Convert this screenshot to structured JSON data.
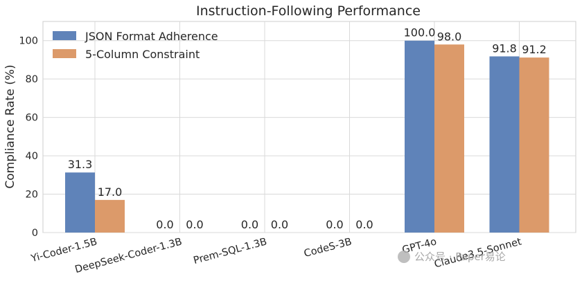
{
  "chart_data": {
    "type": "bar",
    "title": "Instruction-Following Performance",
    "xlabel": "",
    "ylabel": "Compliance Rate (%)",
    "ylim": [
      0,
      110
    ],
    "yticks": [
      0,
      20,
      40,
      60,
      80,
      100
    ],
    "categories": [
      "Yi-Coder-1.5B",
      "DeepSeek-Coder-1.3B",
      "Prem-SQL-1.3B",
      "CodeS-3B",
      "GPT-4o",
      "Claude3.5-Sonnet"
    ],
    "series": [
      {
        "name": "JSON Format Adherence",
        "values": [
          31.3,
          0.0,
          0.0,
          0.0,
          100.0,
          91.8
        ],
        "labels": [
          "31.3",
          "0.0",
          "0.0",
          "0.0",
          "100.0",
          "91.8"
        ],
        "color": "#5f83b9"
      },
      {
        "name": "5-Column Constraint",
        "values": [
          17.0,
          0.0,
          0.0,
          0.0,
          98.0,
          91.2
        ],
        "labels": [
          "17.0",
          "0.0",
          "0.0",
          "0.0",
          "98.0",
          "91.2"
        ],
        "color": "#dc9a6a"
      }
    ],
    "grid": true,
    "legend_position": "top-left"
  },
  "watermark": "公众号 · Paper易论"
}
